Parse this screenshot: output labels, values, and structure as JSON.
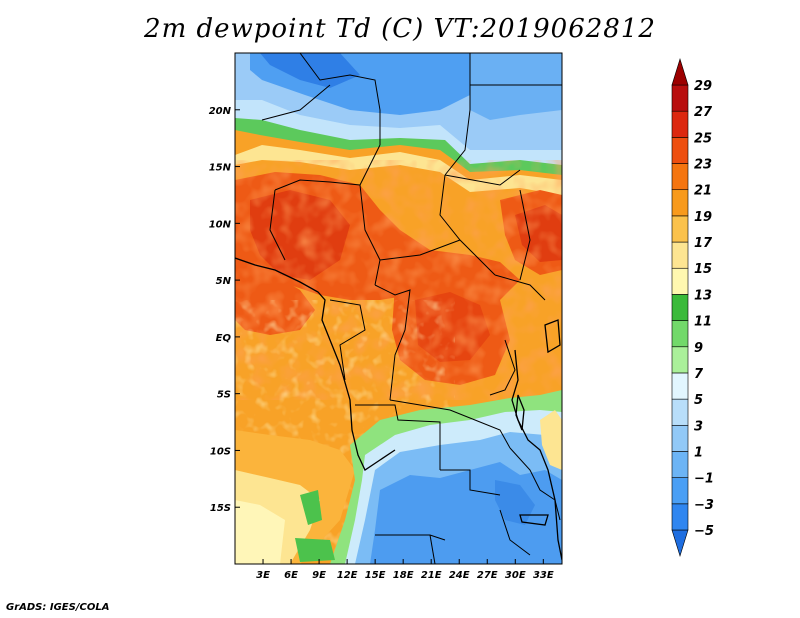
{
  "title": "2m dewpoint Td (C) VT:2019062812",
  "footer": "GrADS: IGES/COLA",
  "chart_data": {
    "type": "heatmap",
    "title": "2m dewpoint Td (C) VT:2019062812",
    "variable": "2m dewpoint",
    "units": "C",
    "valid_time": "2019062812",
    "x_axis": {
      "range_lon": [
        0,
        35
      ],
      "ticks": [
        {
          "value": 3,
          "label": "3E"
        },
        {
          "value": 6,
          "label": "6E"
        },
        {
          "value": 9,
          "label": "9E"
        },
        {
          "value": 12,
          "label": "12E"
        },
        {
          "value": 15,
          "label": "15E"
        },
        {
          "value": 18,
          "label": "18E"
        },
        {
          "value": 21,
          "label": "21E"
        },
        {
          "value": 24,
          "label": "24E"
        },
        {
          "value": 27,
          "label": "27E"
        },
        {
          "value": 30,
          "label": "30E"
        },
        {
          "value": 33,
          "label": "33E"
        }
      ]
    },
    "y_axis": {
      "range_lat": [
        -20,
        25
      ],
      "ticks": [
        {
          "value": 20,
          "label": "20N"
        },
        {
          "value": 15,
          "label": "15N"
        },
        {
          "value": 10,
          "label": "10N"
        },
        {
          "value": 5,
          "label": "5N"
        },
        {
          "value": 0,
          "label": "EQ"
        },
        {
          "value": -5,
          "label": "5S"
        },
        {
          "value": -10,
          "label": "10S"
        },
        {
          "value": -15,
          "label": "15S"
        }
      ]
    },
    "colorbar": {
      "labels": [
        "-5",
        "-3",
        "-1",
        "1",
        "3",
        "5",
        "7",
        "9",
        "11",
        "13",
        "15",
        "17",
        "19",
        "21",
        "23",
        "25",
        "27",
        "29"
      ],
      "colors": [
        "#1e6ee0",
        "#2f86f0",
        "#4a9ff5",
        "#6cb4f5",
        "#92c9f7",
        "#b8defa",
        "#e2f6ff",
        "#aaf09a",
        "#72d96a",
        "#3aba3a",
        "#fff8b0",
        "#fde592",
        "#fbc24c",
        "#f89a1c",
        "#f57510",
        "#ee4f10",
        "#dc2810",
        "#b80e0e",
        "#9c0000"
      ]
    }
  }
}
